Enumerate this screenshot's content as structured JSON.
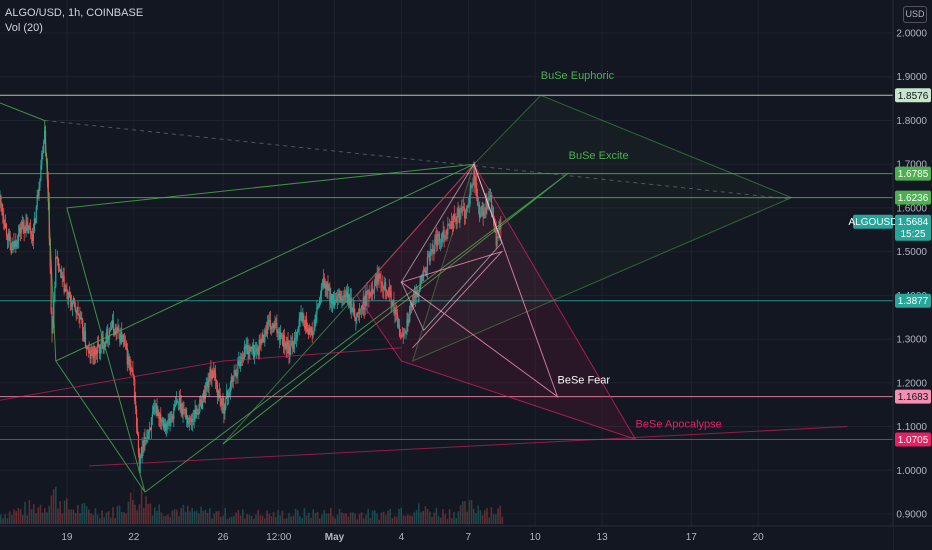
{
  "header": {
    "symbol_line": "ALGO/USD, 1h, COINBASE",
    "indicator_line": "Vol (20)",
    "currency_button": "USD"
  },
  "colors": {
    "background": "#131722",
    "up": "#26a69a",
    "down": "#ef5350",
    "green_line": "#4caf50",
    "pink_line": "#e91e63",
    "light_pink": "#f48fb1",
    "current_tag": "#26a69a"
  },
  "chart_data": {
    "type": "candlestick",
    "title": "",
    "xlabel": "",
    "ylabel": "",
    "ylim": [
      0.88,
      2.04
    ],
    "y_ticks": [
      "2.0000",
      "1.9000",
      "1.8000",
      "1.7000",
      "1.6000",
      "1.5000",
      "1.4000",
      "1.3000",
      "1.2000",
      "1.1000",
      "1.0000",
      "0.9000"
    ],
    "x_ticks": [
      "19",
      "22",
      "26",
      "12:00",
      "May",
      "4",
      "7",
      "10",
      "13",
      "17",
      "20"
    ],
    "x_tick_values": [
      "Apr 19",
      "Apr 22",
      "Apr 26",
      "Apr 28 12:00",
      "May 1",
      "May 4",
      "May 7",
      "May 10",
      "May 13",
      "May 17",
      "May 20"
    ],
    "price_path": [
      [
        "Apr 16 00:00",
        1.62
      ],
      [
        "Apr 16 12:00",
        1.5
      ],
      [
        "Apr 17 00:00",
        1.56
      ],
      [
        "Apr 17 12:00",
        1.54
      ],
      [
        "Apr 18 00:00",
        1.78
      ],
      [
        "Apr 18 04:00",
        1.62
      ],
      [
        "Apr 18 08:00",
        1.3
      ],
      [
        "Apr 18 12:00",
        1.48
      ],
      [
        "Apr 19 00:00",
        1.4
      ],
      [
        "Apr 19 12:00",
        1.36
      ],
      [
        "Apr 20 00:00",
        1.26
      ],
      [
        "Apr 20 12:00",
        1.28
      ],
      [
        "Apr 21 00:00",
        1.33
      ],
      [
        "Apr 21 12:00",
        1.3
      ],
      [
        "Apr 22 00:00",
        1.2
      ],
      [
        "Apr 22 06:00",
        1.01
      ],
      [
        "Apr 22 12:00",
        1.07
      ],
      [
        "Apr 23 00:00",
        1.14
      ],
      [
        "Apr 23 12:00",
        1.1
      ],
      [
        "Apr 24 00:00",
        1.16
      ],
      [
        "Apr 24 12:00",
        1.11
      ],
      [
        "Apr 25 00:00",
        1.15
      ],
      [
        "Apr 25 12:00",
        1.23
      ],
      [
        "Apr 26 00:00",
        1.14
      ],
      [
        "Apr 26 12:00",
        1.22
      ],
      [
        "Apr 27 00:00",
        1.28
      ],
      [
        "Apr 27 12:00",
        1.27
      ],
      [
        "Apr 28 00:00",
        1.33
      ],
      [
        "Apr 28 12:00",
        1.32
      ],
      [
        "Apr 29 00:00",
        1.27
      ],
      [
        "Apr 29 12:00",
        1.35
      ],
      [
        "Apr 30 00:00",
        1.31
      ],
      [
        "Apr 30 12:00",
        1.43
      ],
      [
        "May 1 00:00",
        1.38
      ],
      [
        "May 1 12:00",
        1.4
      ],
      [
        "May 2 00:00",
        1.35
      ],
      [
        "May 2 12:00",
        1.4
      ],
      [
        "May 3 00:00",
        1.45
      ],
      [
        "May 3 12:00",
        1.4
      ],
      [
        "May 4 00:00",
        1.3
      ],
      [
        "May 4 12:00",
        1.38
      ],
      [
        "May 5 00:00",
        1.45
      ],
      [
        "May 5 12:00",
        1.52
      ],
      [
        "May 6 00:00",
        1.55
      ],
      [
        "May 6 12:00",
        1.58
      ],
      [
        "May 7 00:00",
        1.6
      ],
      [
        "May 7 06:00",
        1.68
      ],
      [
        "May 7 12:00",
        1.58
      ],
      [
        "May 8 00:00",
        1.62
      ],
      [
        "May 8 06:00",
        1.52
      ],
      [
        "May 8 12:00",
        1.57
      ]
    ],
    "volume_profile": [
      [
        "Apr 16 00:00",
        0.3
      ],
      [
        "Apr 18 00:00",
        0.6
      ],
      [
        "Apr 18 08:00",
        1.0
      ],
      [
        "Apr 19 00:00",
        0.5
      ],
      [
        "Apr 21 00:00",
        0.35
      ],
      [
        "Apr 22 06:00",
        0.9
      ],
      [
        "Apr 23 00:00",
        0.5
      ],
      [
        "Apr 25 00:00",
        0.35
      ],
      [
        "Apr 28 00:00",
        0.3
      ],
      [
        "May 1 00:00",
        0.35
      ],
      [
        "May 3 00:00",
        0.3
      ],
      [
        "May 4 00:00",
        0.5
      ],
      [
        "May 6 00:00",
        0.35
      ],
      [
        "May 7 06:00",
        0.55
      ],
      [
        "May 8 12:00",
        0.4
      ]
    ],
    "horizontal_levels": [
      {
        "price": 1.8576,
        "label": "1.8576",
        "color": "#c8e6c9"
      },
      {
        "price": 1.6785,
        "label": "1.6785",
        "color": "#4caf50"
      },
      {
        "price": 1.6236,
        "label": "1.6236",
        "color": "#4caf50"
      },
      {
        "price": 1.3877,
        "label": "1.3877",
        "color": "#26a69a"
      },
      {
        "price": 1.1683,
        "label": "1.1683",
        "color": "#f48fb1"
      },
      {
        "price": 1.0705,
        "label": "1.0705",
        "color": "#e91e63"
      }
    ],
    "current_price": {
      "symbol": "ALGOUSD",
      "price": 1.5684,
      "label": "1.5684",
      "countdown": "15:25"
    },
    "annotations": [
      {
        "text": "BuSe Euphoric",
        "t": "May 10 06:00",
        "price": 1.895,
        "color": "#4caf50"
      },
      {
        "text": "BuSe Excite",
        "t": "May 11 12:00",
        "price": 1.712,
        "color": "#4caf50"
      },
      {
        "text": "BeSe Fear",
        "t": "May 11 00:00",
        "price": 1.198,
        "color": "#f8f8f8"
      },
      {
        "text": "BeSe Apocalypse",
        "t": "May 14 12:00",
        "price": 1.098,
        "color": "#e91e63"
      }
    ],
    "drawings": [
      {
        "kind": "polyline",
        "color": "#4caf50",
        "opacity": 0.8,
        "points": [
          [
            "Apr 16 00:00",
            1.84
          ],
          [
            "Apr 18 00:00",
            1.8
          ],
          [
            "Apr 18 12:00",
            1.25
          ],
          [
            "Apr 22 12:00",
            0.95
          ],
          [
            "Apr 19 00:00",
            1.6
          ],
          [
            "May 7 06:00",
            1.7
          ],
          [
            "Apr 18 12:00",
            1.25
          ]
        ]
      },
      {
        "kind": "polyline",
        "color": "#4caf50",
        "opacity": 0.8,
        "points": [
          [
            "Apr 22 12:00",
            0.95
          ],
          [
            "May 11 12:00",
            1.68
          ],
          [
            "Apr 26 00:00",
            1.06
          ]
        ]
      },
      {
        "kind": "polygon",
        "color": "#4caf50",
        "opacity": 0.5,
        "fill": "#4caf50",
        "fill_opacity": 0.05,
        "points": [
          [
            "May 7 06:00",
            1.7
          ],
          [
            "May 10 06:00",
            1.8576
          ],
          [
            "May 21 12:00",
            1.6236
          ],
          [
            "May 4 12:00",
            1.25
          ]
        ]
      },
      {
        "kind": "polyline",
        "color": "#4caf50",
        "opacity": 0.6,
        "points": [
          [
            "Apr 26 00:00",
            1.06
          ],
          [
            "May 7 06:00",
            1.7
          ]
        ]
      },
      {
        "kind": "polygon",
        "color": "#e91e63",
        "opacity": 0.7,
        "fill": "#e91e63",
        "fill_opacity": 0.1,
        "points": [
          [
            "May 7 06:00",
            1.7
          ],
          [
            "May 14 12:00",
            1.0705
          ],
          [
            "May 4 00:00",
            1.25
          ],
          [
            "May 2 00:00",
            1.4
          ]
        ]
      },
      {
        "kind": "polyline",
        "color": "#f48fb1",
        "opacity": 0.8,
        "points": [
          [
            "May 7 06:00",
            1.7
          ],
          [
            "May 11 00:00",
            1.1683
          ],
          [
            "May 4 00:00",
            1.43
          ],
          [
            "May 8 12:00",
            1.5
          ],
          [
            "May 4 12:00",
            1.28
          ]
        ]
      },
      {
        "kind": "polyline",
        "color": "#e91e63",
        "opacity": 0.6,
        "points": [
          [
            "Apr 16 00:00",
            1.16
          ],
          [
            "Apr 26 00:00",
            1.25
          ],
          [
            "May 4 00:00",
            1.28
          ]
        ]
      },
      {
        "kind": "polyline",
        "color": "#e91e63",
        "opacity": 0.6,
        "points": [
          [
            "Apr 20 00:00",
            1.01
          ],
          [
            "May 24 00:00",
            1.1
          ]
        ]
      },
      {
        "kind": "polyline",
        "color": "#f8f8f8",
        "opacity": 0.5,
        "points": [
          [
            "May 4 00:00",
            1.43
          ],
          [
            "May 7 06:00",
            1.7
          ],
          [
            "May 8 12:00",
            1.52
          ],
          [
            "May 5 00:00",
            1.32
          ],
          [
            "May 4 00:00",
            1.43
          ]
        ]
      },
      {
        "kind": "dashed",
        "color": "#787b86",
        "opacity": 0.6,
        "points": [
          [
            "Apr 18 00:00",
            1.8
          ],
          [
            "May 21 12:00",
            1.62
          ]
        ]
      }
    ]
  }
}
